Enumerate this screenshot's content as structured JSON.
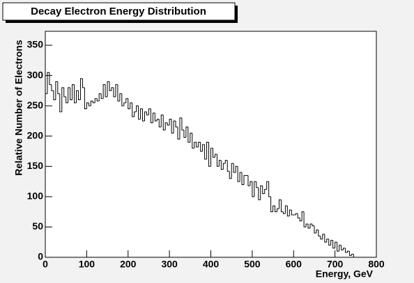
{
  "chart_data": {
    "type": "histogram",
    "title": "Decay Electron Energy Distribution",
    "x_label": "Energy, GeV",
    "y_label": "Relative Number of Electrons",
    "color": "#000000",
    "bins": [
      0,
      5,
      10,
      15,
      20,
      25,
      30,
      35,
      40,
      45,
      50,
      55,
      60,
      65,
      70,
      75,
      80,
      85,
      90,
      95,
      100,
      105,
      110,
      115,
      120,
      125,
      130,
      135,
      140,
      145,
      150,
      155,
      160,
      165,
      170,
      175,
      180,
      185,
      190,
      195,
      200,
      205,
      210,
      215,
      220,
      225,
      230,
      235,
      240,
      245,
      250,
      255,
      260,
      265,
      270,
      275,
      280,
      285,
      290,
      295,
      300,
      305,
      310,
      315,
      320,
      325,
      330,
      335,
      340,
      345,
      350,
      355,
      360,
      365,
      370,
      375,
      380,
      385,
      390,
      395,
      400,
      405,
      410,
      415,
      420,
      425,
      430,
      435,
      440,
      445,
      450,
      455,
      460,
      465,
      470,
      475,
      480,
      485,
      490,
      495,
      500,
      505,
      510,
      515,
      520,
      525,
      530,
      535,
      540,
      545,
      550,
      555,
      560,
      565,
      570,
      575,
      580,
      585,
      590,
      595,
      600,
      605,
      610,
      615,
      620,
      625,
      630,
      635,
      640,
      645,
      650,
      655,
      660,
      665,
      670,
      675,
      680,
      685,
      690,
      695,
      700,
      705,
      710,
      715,
      720,
      725,
      730,
      735,
      740,
      745,
      750,
      755,
      760,
      765,
      770,
      775,
      780,
      785,
      790,
      795,
      800
    ],
    "values": [
      270,
      305,
      285,
      275,
      260,
      290,
      270,
      240,
      280,
      265,
      255,
      280,
      260,
      285,
      255,
      275,
      260,
      295,
      280,
      245,
      255,
      250,
      258,
      255,
      262,
      258,
      270,
      262,
      285,
      265,
      290,
      275,
      280,
      265,
      285,
      258,
      270,
      250,
      255,
      262,
      245,
      255,
      232,
      240,
      250,
      228,
      245,
      225,
      240,
      235,
      245,
      222,
      238,
      225,
      228,
      215,
      235,
      210,
      222,
      218,
      228,
      205,
      225,
      215,
      195,
      230,
      210,
      198,
      215,
      190,
      205,
      180,
      190,
      182,
      190,
      175,
      186,
      162,
      190,
      150,
      180,
      165,
      170,
      150,
      160,
      145,
      155,
      160,
      142,
      130,
      155,
      140,
      150,
      125,
      140,
      120,
      135,
      135,
      118,
      125,
      100,
      125,
      115,
      95,
      118,
      105,
      112,
      125,
      100,
      75,
      85,
      75,
      80,
      95,
      75,
      72,
      85,
      68,
      78,
      70,
      70,
      72,
      65,
      60,
      75,
      50,
      55,
      48,
      55,
      52,
      40,
      45,
      35,
      30,
      38,
      25,
      30,
      20,
      28,
      15,
      25,
      10,
      20,
      12,
      15,
      8,
      10,
      3,
      5,
      0,
      0,
      0,
      0,
      0,
      0,
      0,
      0,
      0,
      0,
      0
    ],
    "xlim": [
      0,
      800
    ],
    "ylim": [
      0,
      373
    ],
    "xticks": [
      0,
      100,
      200,
      300,
      400,
      500,
      600,
      700,
      800
    ],
    "yticks": [
      0,
      50,
      100,
      150,
      200,
      250,
      300,
      350
    ]
  }
}
